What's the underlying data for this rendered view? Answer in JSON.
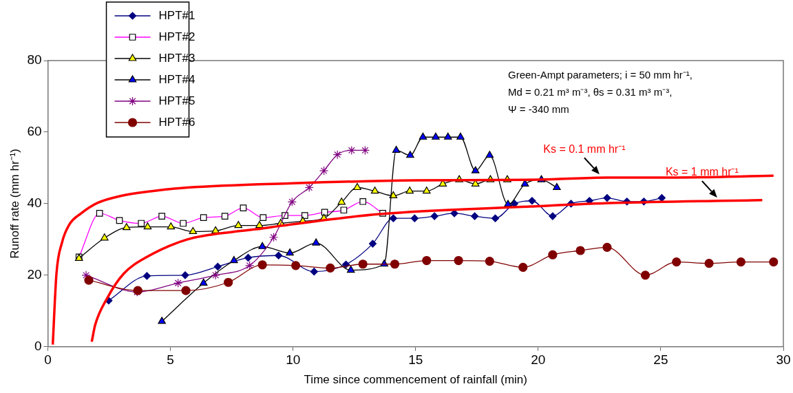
{
  "chart_data": {
    "type": "line",
    "xlabel": "Time since commencement of rainfall (min)",
    "ylabel": "Runoff rate (mm hr⁻¹)",
    "xlim": [
      0,
      30
    ],
    "xticks": [
      0,
      5,
      10,
      15,
      20,
      25,
      30
    ],
    "ylim": [
      0,
      80
    ],
    "yticks": [
      0,
      20,
      40,
      60,
      80
    ],
    "grid": false,
    "legend": "top left",
    "line_style": "solid",
    "annotations": [
      "Green-Ampt parameters; i = 50 mm hr⁻¹,",
      "Md = 0.21 m³ m⁻³, θs = 0.31 m³ m⁻³,",
      "Ψ = -340 mm"
    ],
    "series": [
      {
        "name": "HPT#1",
        "color": "#000080",
        "marker": "diamond",
        "x": [
          2.48,
          4.04,
          5.6,
          6.93,
          8.17,
          9.41,
          10.86,
          12.16,
          13.25,
          14.09,
          14.96,
          15.77,
          16.58,
          17.41,
          18.25,
          19.03,
          19.75,
          20.59,
          21.34,
          22.09,
          22.81,
          23.62,
          24.31,
          25.04
        ],
        "values": [
          12.9,
          19.8,
          20.0,
          22.4,
          24.9,
          25.5,
          21.0,
          23.0,
          28.8,
          35.9,
          35.9,
          36.5,
          37.3,
          36.5,
          35.9,
          40.0,
          40.8,
          36.5,
          40.0,
          40.8,
          41.6,
          40.6,
          40.6,
          41.6
        ]
      },
      {
        "name": "HPT#2",
        "color": "#ff00ff",
        "colors": [
          "#ffffff",
          "#ffffff",
          "#ffffff",
          "#ffffff",
          "#ffffff",
          "#ffffff",
          "#ffffff",
          "#ffffff",
          "#ffffff",
          "#ffffff",
          "#ffffff",
          "#ffffff",
          "#ffffff",
          "#ffffff",
          "#ffffff",
          "#ffffff"
        ],
        "marker": "square",
        "x": [
          1.27,
          2.11,
          2.92,
          3.81,
          4.65,
          5.52,
          6.35,
          7.22,
          7.97,
          8.78,
          9.67,
          10.48,
          11.29,
          12.07,
          12.85,
          13.66
        ],
        "values": [
          25.1,
          37.3,
          35.3,
          34.5,
          36.5,
          34.5,
          36.1,
          36.5,
          38.8,
          36.1,
          36.7,
          36.7,
          37.6,
          38.2,
          40.6,
          37.3
        ]
      },
      {
        "name": "HPT#3",
        "color": "#000000",
        "colors": [
          "#ffff00",
          "#ffff00",
          "#ffff00",
          "#ffff00",
          "#ffff00",
          "#ffff00",
          "#ffff00",
          "#ffff00",
          "#ffff00",
          "#ffff00",
          "#ffff00",
          "#ffff00",
          "#ffff00",
          "#ffff00",
          "#ffff00",
          "#ffff00",
          "#ffff00",
          "#ffff00",
          "#ffff00",
          "#ffff00",
          "#ffff00",
          "#ffff00",
          "#ffff00"
        ],
        "marker": "triangle",
        "x": [
          1.27,
          2.31,
          3.21,
          4.07,
          5.02,
          5.92,
          6.84,
          7.77,
          8.63,
          9.5,
          10.4,
          11.26,
          11.98,
          12.62,
          13.34,
          14.09,
          14.76,
          15.45,
          16.11,
          16.78,
          17.44,
          18.05,
          18.74
        ],
        "values": [
          24.7,
          30.4,
          33.3,
          33.5,
          33.5,
          32.2,
          32.4,
          33.9,
          33.9,
          34.5,
          35.1,
          35.9,
          40.4,
          44.5,
          43.5,
          42.2,
          43.5,
          43.5,
          45.5,
          46.7,
          45.5,
          46.7,
          46.7
        ]
      },
      {
        "name": "HPT#4",
        "color": "#000000",
        "colors": [
          "#0000ff",
          "#0000ff",
          "#0000ff",
          "#0000ff",
          "#0000ff",
          "#0000ff",
          "#0000ff",
          "#0000ff",
          "#0000ff",
          "#0000ff",
          "#0000ff",
          "#0000ff",
          "#0000ff",
          "#0000ff",
          "#0000ff",
          "#0000ff",
          "#0000ff",
          "#0000ff",
          "#0000ff",
          "#0000ff"
        ],
        "marker": "triangle",
        "x": [
          4.65,
          6.35,
          7.59,
          8.75,
          9.87,
          10.94,
          12.36,
          13.72,
          14.21,
          14.78,
          15.3,
          15.82,
          16.32,
          16.83,
          17.44,
          18.02,
          18.77,
          19.46,
          20.13,
          20.76
        ],
        "values": [
          7.1,
          17.8,
          24.1,
          28.0,
          26.2,
          29.0,
          21.4,
          23.1,
          54.9,
          53.5,
          58.6,
          58.6,
          58.6,
          58.6,
          49.2,
          53.5,
          39.8,
          45.5,
          46.7,
          44.5
        ]
      },
      {
        "name": "HPT#5",
        "color": "#800080",
        "marker": "cross",
        "x": [
          1.56,
          3.64,
          5.31,
          6.84,
          8.23,
          9.21,
          9.96,
          10.66,
          11.26,
          11.81,
          12.39,
          12.94
        ],
        "values": [
          20.0,
          15.3,
          17.8,
          20.0,
          22.7,
          30.6,
          40.5,
          44.5,
          49.2,
          53.7,
          54.9,
          54.9
        ]
      },
      {
        "name": "HPT#6",
        "color": "#800000",
        "marker": "circle",
        "x": [
          1.67,
          3.67,
          5.63,
          7.36,
          8.75,
          10.11,
          11.52,
          12.85,
          14.15,
          15.45,
          16.75,
          18.02,
          19.38,
          20.59,
          21.72,
          22.81,
          24.37,
          25.64,
          26.97,
          28.27,
          29.6
        ],
        "values": [
          18.6,
          15.7,
          15.7,
          18.0,
          22.9,
          22.7,
          22.0,
          23.1,
          23.1,
          24.1,
          24.1,
          23.9,
          22.2,
          25.7,
          26.9,
          27.8,
          20.0,
          23.7,
          23.3,
          23.7,
          23.7
        ]
      },
      {
        "name": "Ks = 0.1 mm hr⁻¹",
        "color": "#ff0000",
        "marker": "none",
        "x": [
          0.2,
          0.35,
          0.58,
          0.87,
          1.36,
          2.02,
          3.0,
          4.24,
          5.69,
          10.0,
          15.0,
          20.0,
          22.8,
          25.4,
          29.6
        ],
        "values": [
          0.6,
          20.4,
          29.2,
          34.1,
          37.3,
          40.2,
          42.2,
          43.5,
          44.5,
          45.7,
          46.5,
          46.7,
          47.3,
          47.3,
          47.8
        ]
      },
      {
        "name": "Ks = 1 mm hr⁻¹",
        "color": "#ff0000",
        "marker": "none",
        "x": [
          1.79,
          1.93,
          2.43,
          3.09,
          4.04,
          5.69,
          7.62,
          8.7,
          9.5,
          13.54,
          19.69,
          23.16,
          29.14
        ],
        "values": [
          1.4,
          6.1,
          13.7,
          20.4,
          25.1,
          30.0,
          32.2,
          33.0,
          33.8,
          37.1,
          39.2,
          40.2,
          41.0
        ]
      }
    ]
  }
}
